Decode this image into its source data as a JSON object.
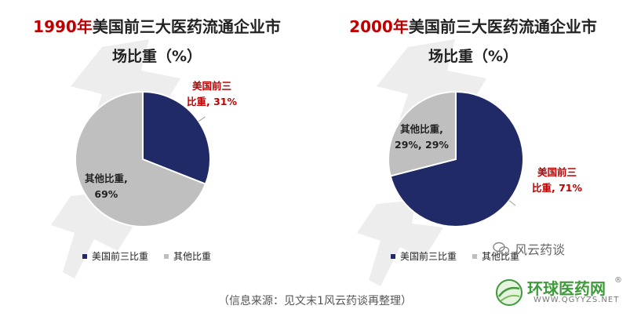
{
  "charts": [
    {
      "title_year": "1990年",
      "title_rest": "美国前三大医药流通企业市",
      "title_line2": "场比重（%）",
      "label_main_1": "美国前三",
      "label_main_2": "比重, 31%",
      "label_other_1": "其他比重,",
      "label_other_2": "69%",
      "legend": [
        "美国前三比重",
        "其他比重"
      ]
    },
    {
      "title_year": "2000年",
      "title_rest": "美国前三大医药流通企业市",
      "title_line2": "场比重（%）",
      "label_main_1": "美国前三",
      "label_main_2": "比重, 71%",
      "label_other_1": "其他比重,",
      "label_other_2": "29%, 29%",
      "legend": [
        "美国前三比重",
        "其他比重"
      ]
    }
  ],
  "chart_data": [
    {
      "type": "pie",
      "title": "1990年美国前三大医药流通企业市场比重（%）",
      "labels": [
        "美国前三比重",
        "其他比重"
      ],
      "values": [
        31,
        69
      ],
      "colors": [
        "#1f2a66",
        "#bfbfbf"
      ],
      "legend": "bottom"
    },
    {
      "type": "pie",
      "title": "2000年美国前三大医药流通企业市场比重（%）",
      "labels": [
        "美国前三比重",
        "其他比重"
      ],
      "values": [
        71,
        29
      ],
      "colors": [
        "#1f2a66",
        "#bfbfbf"
      ],
      "legend": "bottom"
    }
  ],
  "source": "（信息来源：见文末1风云药谈再整理）",
  "wechat": "风云药谈",
  "logo": {
    "cn": "环球医药网",
    "en": "WWW.QGYYZS.NET",
    "reg": "®"
  },
  "colors": {
    "navy": "#1f2a66",
    "gray": "#bfbfbf",
    "red": "#c00000"
  }
}
